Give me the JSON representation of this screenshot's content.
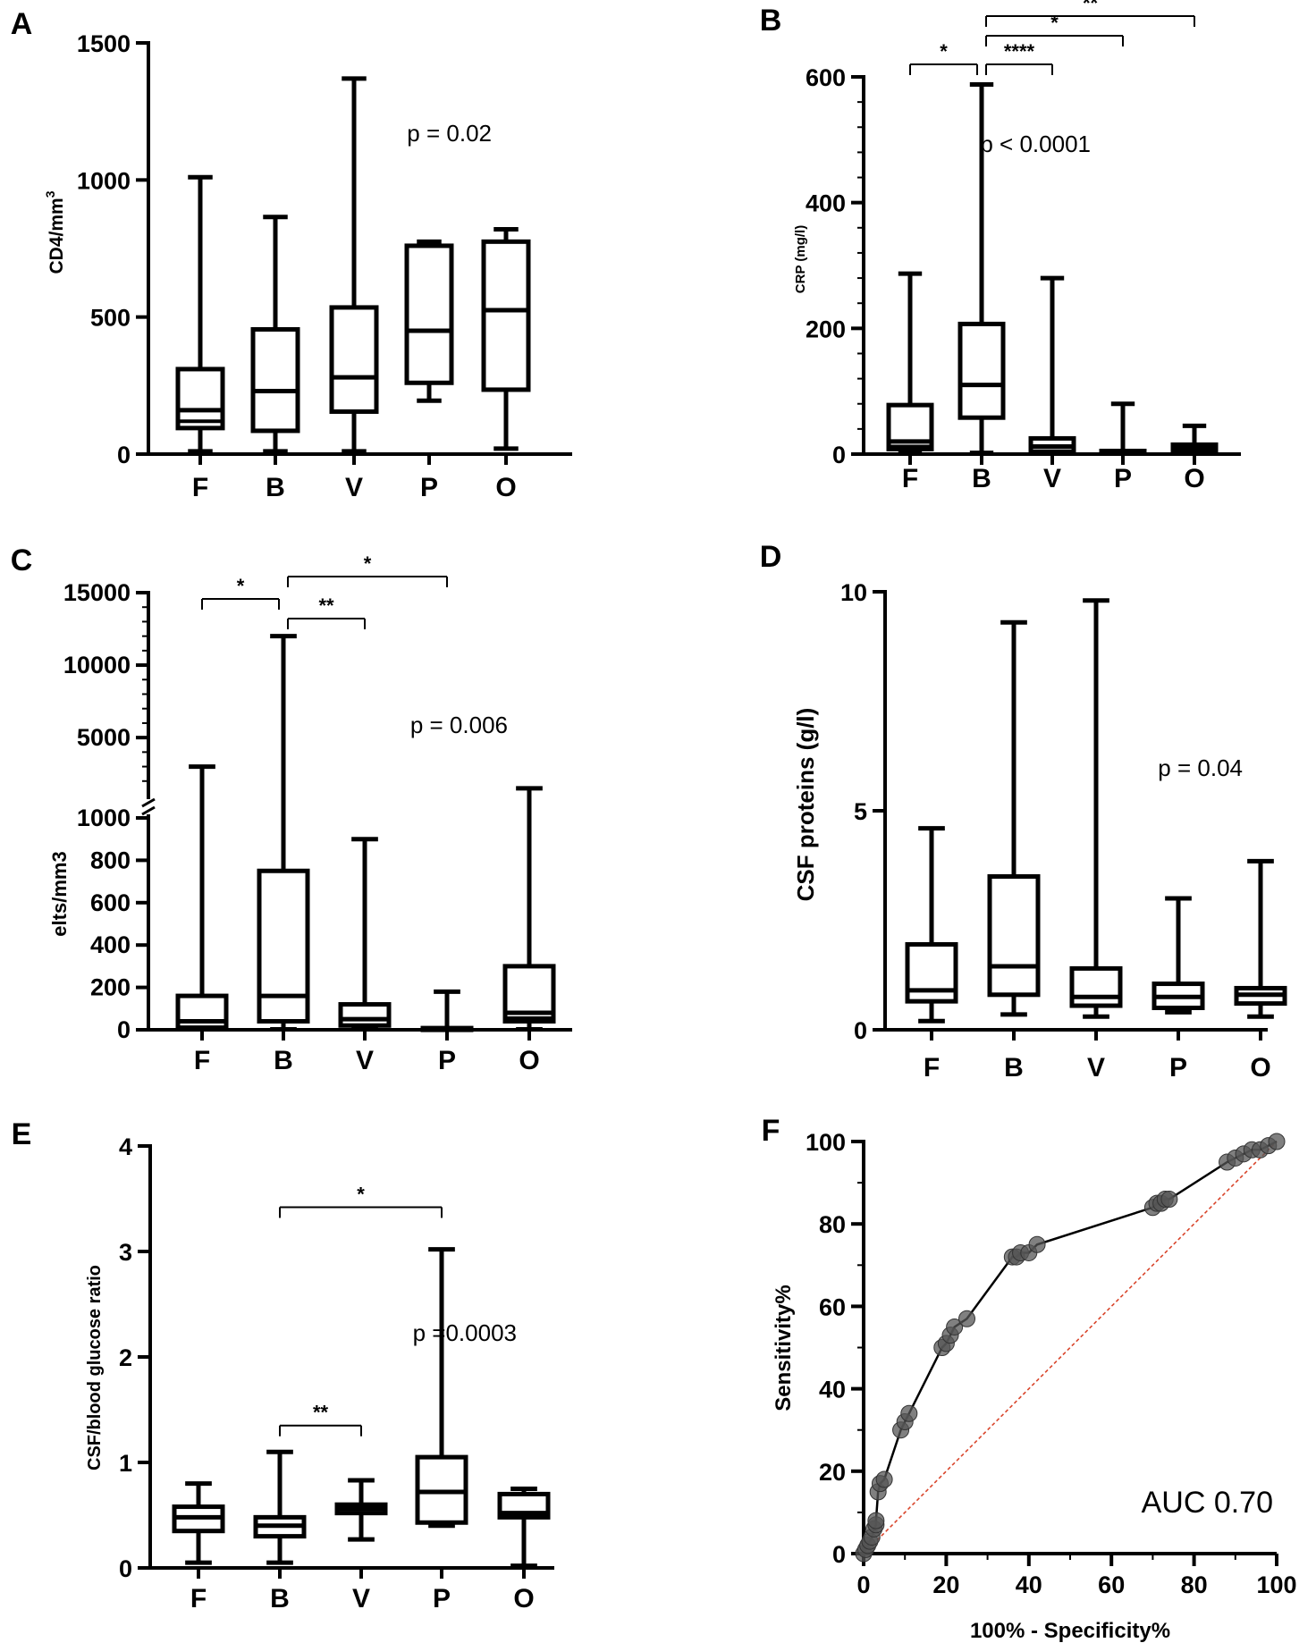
{
  "chart_data": [
    {
      "panel": "A",
      "type": "box",
      "ylabel": "CD4/mm",
      "ylabel_sup": "3",
      "categories": [
        "F",
        "B",
        "V",
        "P",
        "O"
      ],
      "yticks": [
        0,
        500,
        1000,
        1500
      ],
      "ylim": [
        0,
        1500
      ],
      "boxes": [
        {
          "min": 10,
          "q1": 95,
          "median": 160,
          "q3": 310,
          "max": 1010,
          "extra_line": 120
        },
        {
          "min": 10,
          "q1": 85,
          "median": 230,
          "q3": 455,
          "max": 865
        },
        {
          "min": 10,
          "q1": 155,
          "median": 280,
          "q3": 535,
          "max": 1370
        },
        {
          "min": 195,
          "q1": 260,
          "median": 450,
          "q3": 760,
          "max": 775
        },
        {
          "min": 20,
          "q1": 235,
          "median": 525,
          "q3": 775,
          "max": 820
        }
      ],
      "pvalue": "p = 0.02",
      "brackets": []
    },
    {
      "panel": "B",
      "type": "box",
      "ylabel": "CRP (mg/l)",
      "categories": [
        "F",
        "B",
        "V",
        "P",
        "O"
      ],
      "yticks": [
        0,
        200,
        400,
        600
      ],
      "ylim": [
        0,
        600
      ],
      "boxes": [
        {
          "min": 5,
          "q1": 8,
          "median": 20,
          "q3": 78,
          "max": 287,
          "extra_line": 12
        },
        {
          "min": 2,
          "q1": 58,
          "median": 110,
          "q3": 207,
          "max": 588
        },
        {
          "min": 2,
          "q1": 4,
          "median": 12,
          "q3": 25,
          "max": 280
        },
        {
          "min": 1,
          "q1": 2,
          "median": 3,
          "q3": 5,
          "max": 80
        },
        {
          "min": 1,
          "q1": 5,
          "median": 10,
          "q3": 15,
          "max": 45
        }
      ],
      "pvalue": "p < 0.0001",
      "brackets": [
        {
          "from": 0,
          "to": 1,
          "label": "*",
          "level": 0
        },
        {
          "from": 1,
          "to": 2,
          "label": "****",
          "level": 0
        },
        {
          "from": 1,
          "to": 3,
          "label": "*",
          "level": 1
        },
        {
          "from": 1,
          "to": 4,
          "label": "**",
          "level": 2
        }
      ]
    },
    {
      "panel": "C",
      "type": "box",
      "ylabel": "elts/mm3",
      "categories": [
        "F",
        "B",
        "V",
        "P",
        "O"
      ],
      "yticks_lower": [
        0,
        200,
        400,
        600,
        800,
        1000
      ],
      "yticks_upper": [
        5000,
        10000,
        15000
      ],
      "ylim_lower": [
        0,
        1000
      ],
      "ylim_upper": [
        1000,
        15000
      ],
      "boxes": [
        {
          "min": 2,
          "q1": 10,
          "median": 40,
          "q3": 160,
          "max": 3000
        },
        {
          "min": 2,
          "q1": 40,
          "median": 160,
          "q3": 750,
          "max": 12000
        },
        {
          "min": 2,
          "q1": 20,
          "median": 50,
          "q3": 120,
          "max": 900
        },
        {
          "min": 0,
          "q1": 1,
          "median": 3,
          "q3": 8,
          "max": 180
        },
        {
          "min": 2,
          "q1": 40,
          "median": 80,
          "q3": 300,
          "max": 1500,
          "extra_line": 55
        }
      ],
      "pvalue": "p = 0.006",
      "brackets": [
        {
          "from": 0,
          "to": 1,
          "label": "*",
          "level": 0
        },
        {
          "from": 1,
          "to": 2,
          "label": "**",
          "level": 0
        },
        {
          "from": 1,
          "to": 3,
          "label": "*",
          "level": 1
        }
      ]
    },
    {
      "panel": "D",
      "type": "box",
      "ylabel": "CSF proteins (g/l)",
      "categories": [
        "F",
        "B",
        "V",
        "P",
        "O"
      ],
      "yticks": [
        0,
        5,
        10
      ],
      "ylim": [
        0,
        10
      ],
      "boxes": [
        {
          "min": 0.2,
          "q1": 0.65,
          "median": 0.9,
          "q3": 1.95,
          "max": 4.6
        },
        {
          "min": 0.35,
          "q1": 0.8,
          "median": 1.45,
          "q3": 3.5,
          "max": 9.3
        },
        {
          "min": 0.3,
          "q1": 0.55,
          "median": 0.75,
          "q3": 1.4,
          "max": 9.8
        },
        {
          "min": 0.4,
          "q1": 0.5,
          "median": 0.75,
          "q3": 1.05,
          "max": 3.0
        },
        {
          "min": 0.3,
          "q1": 0.6,
          "median": 0.8,
          "q3": 0.95,
          "max": 3.85
        }
      ],
      "pvalue": "p = 0.04",
      "brackets": []
    },
    {
      "panel": "E",
      "type": "box",
      "ylabel": "CSF/blood glucose ratio",
      "categories": [
        "F",
        "B",
        "V",
        "P",
        "O"
      ],
      "yticks": [
        0,
        1,
        2,
        3,
        4
      ],
      "ylim": [
        0,
        4
      ],
      "boxes": [
        {
          "min": 0.05,
          "q1": 0.35,
          "median": 0.48,
          "q3": 0.58,
          "max": 0.8
        },
        {
          "min": 0.05,
          "q1": 0.3,
          "median": 0.4,
          "q3": 0.48,
          "max": 1.1
        },
        {
          "min": 0.27,
          "q1": 0.52,
          "median": 0.56,
          "q3": 0.6,
          "max": 0.83
        },
        {
          "min": 0.4,
          "q1": 0.43,
          "median": 0.72,
          "q3": 1.05,
          "max": 3.02
        },
        {
          "min": 0.02,
          "q1": 0.48,
          "median": 0.52,
          "q3": 0.7,
          "max": 0.75
        }
      ],
      "pvalue": "p  =0.0003",
      "brackets": [
        {
          "from": 1,
          "to": 3,
          "label": "*",
          "y": 3.42
        },
        {
          "from": 1,
          "to": 2,
          "label": "**",
          "y": 1.35
        }
      ]
    },
    {
      "panel": "F",
      "type": "line",
      "xlabel": "100% - Specificity%",
      "ylabel": "Sensitivity%",
      "xlim": [
        0,
        100
      ],
      "ylim": [
        0,
        100
      ],
      "xticks": [
        0,
        20,
        40,
        60,
        80,
        100
      ],
      "yticks": [
        0,
        20,
        40,
        60,
        80,
        100
      ],
      "annotation": "AUC 0.70",
      "x": [
        0,
        0.5,
        1,
        1.5,
        2,
        2.5,
        3,
        3,
        3.5,
        4,
        5,
        9,
        10,
        11,
        19,
        20,
        21,
        22,
        25,
        36,
        37,
        38,
        40,
        42,
        70,
        71,
        72,
        73,
        74,
        88,
        90,
        92,
        94,
        96,
        98,
        100
      ],
      "y": [
        0,
        1,
        2,
        3,
        4,
        6,
        7,
        8,
        15,
        17,
        18,
        30,
        32,
        34,
        50,
        51,
        53,
        55,
        57,
        72,
        72,
        73,
        73,
        75,
        84,
        85,
        85,
        86,
        86,
        95,
        96,
        97,
        98,
        98,
        99,
        100
      ],
      "reference_line": "diagonal"
    }
  ]
}
